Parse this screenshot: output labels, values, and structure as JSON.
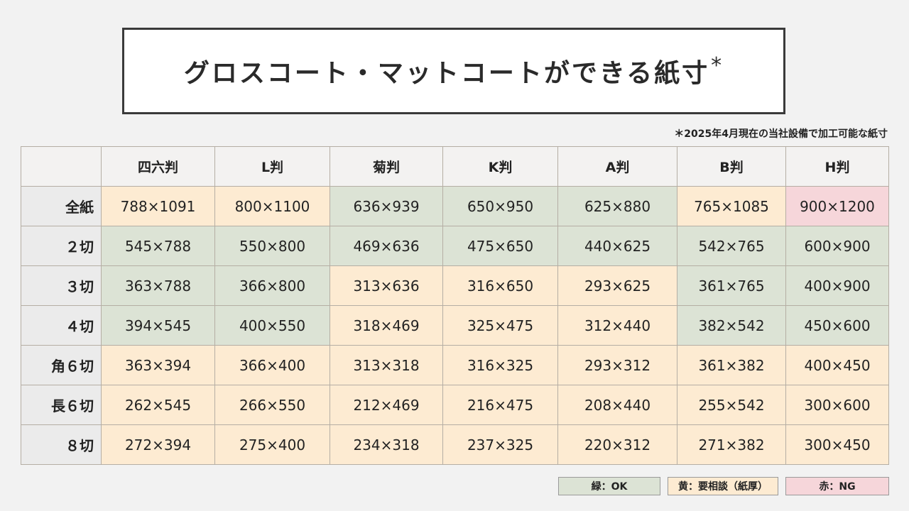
{
  "title": "グロスコート・マットコートができる紙寸",
  "title_mark": "*",
  "note": "＊2025年4月現在の当社設備で加工可能な紙寸",
  "colors": {
    "ok": "#dce3d5",
    "ask": "#fdebd2",
    "ng": "#f6d6da"
  },
  "columns": [
    "四六判",
    "L判",
    "菊判",
    "K判",
    "A判",
    "B判",
    "H判"
  ],
  "rows": [
    {
      "label": "全紙",
      "cells": [
        {
          "v": "788×1091",
          "s": "ask"
        },
        {
          "v": "800×1100",
          "s": "ask"
        },
        {
          "v": "636×939",
          "s": "ok"
        },
        {
          "v": "650×950",
          "s": "ok"
        },
        {
          "v": "625×880",
          "s": "ok"
        },
        {
          "v": "765×1085",
          "s": "ask"
        },
        {
          "v": "900×1200",
          "s": "ng"
        }
      ]
    },
    {
      "label": "２切",
      "cells": [
        {
          "v": "545×788",
          "s": "ok"
        },
        {
          "v": "550×800",
          "s": "ok"
        },
        {
          "v": "469×636",
          "s": "ok"
        },
        {
          "v": "475×650",
          "s": "ok"
        },
        {
          "v": "440×625",
          "s": "ok"
        },
        {
          "v": "542×765",
          "s": "ok"
        },
        {
          "v": "600×900",
          "s": "ok"
        }
      ]
    },
    {
      "label": "３切",
      "cells": [
        {
          "v": "363×788",
          "s": "ok"
        },
        {
          "v": "366×800",
          "s": "ok"
        },
        {
          "v": "313×636",
          "s": "ask"
        },
        {
          "v": "316×650",
          "s": "ask"
        },
        {
          "v": "293×625",
          "s": "ask"
        },
        {
          "v": "361×765",
          "s": "ok"
        },
        {
          "v": "400×900",
          "s": "ok"
        }
      ]
    },
    {
      "label": "４切",
      "cells": [
        {
          "v": "394×545",
          "s": "ok"
        },
        {
          "v": "400×550",
          "s": "ok"
        },
        {
          "v": "318×469",
          "s": "ask"
        },
        {
          "v": "325×475",
          "s": "ask"
        },
        {
          "v": "312×440",
          "s": "ask"
        },
        {
          "v": "382×542",
          "s": "ok"
        },
        {
          "v": "450×600",
          "s": "ok"
        }
      ]
    },
    {
      "label": "角６切",
      "cells": [
        {
          "v": "363×394",
          "s": "ask"
        },
        {
          "v": "366×400",
          "s": "ask"
        },
        {
          "v": "313×318",
          "s": "ask"
        },
        {
          "v": "316×325",
          "s": "ask"
        },
        {
          "v": "293×312",
          "s": "ask"
        },
        {
          "v": "361×382",
          "s": "ask"
        },
        {
          "v": "400×450",
          "s": "ask"
        }
      ]
    },
    {
      "label": "長６切",
      "cells": [
        {
          "v": "262×545",
          "s": "ask"
        },
        {
          "v": "266×550",
          "s": "ask"
        },
        {
          "v": "212×469",
          "s": "ask"
        },
        {
          "v": "216×475",
          "s": "ask"
        },
        {
          "v": "208×440",
          "s": "ask"
        },
        {
          "v": "255×542",
          "s": "ask"
        },
        {
          "v": "300×600",
          "s": "ask"
        }
      ]
    },
    {
      "label": "８切",
      "cells": [
        {
          "v": "272×394",
          "s": "ask"
        },
        {
          "v": "275×400",
          "s": "ask"
        },
        {
          "v": "234×318",
          "s": "ask"
        },
        {
          "v": "237×325",
          "s": "ask"
        },
        {
          "v": "220×312",
          "s": "ask"
        },
        {
          "v": "271×382",
          "s": "ask"
        },
        {
          "v": "300×450",
          "s": "ask"
        }
      ]
    }
  ],
  "legend": {
    "ok": "緑：OK",
    "ask": "黄：要相談（紙厚）",
    "ng": "赤：NG"
  }
}
